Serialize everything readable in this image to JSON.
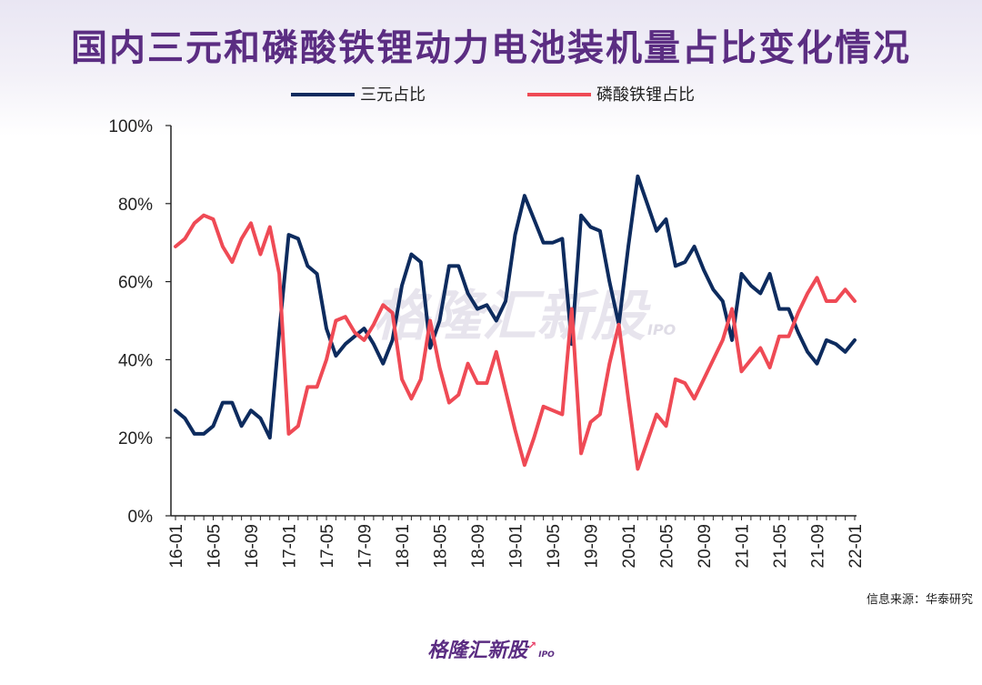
{
  "title": "国内三元和磷酸铁锂动力电池装机量占比变化情况",
  "source": "信息来源：华泰研究",
  "watermark": {
    "brand": "格隆汇新股",
    "suffix": "IPO"
  },
  "footer": {
    "brand": "格隆汇新股",
    "suffix": "IPO"
  },
  "colors": {
    "ternary": "#0d2b5e",
    "lfp": "#ef4a55",
    "title": "#5b2d82"
  },
  "chart_data": {
    "type": "line",
    "title": "国内三元和磷酸铁锂动力电池装机量占比变化情况",
    "xlabel": "",
    "ylabel": "",
    "ylim": [
      0,
      100
    ],
    "yticks": [
      0,
      20,
      40,
      60,
      80,
      100
    ],
    "ytick_labels": [
      "0%",
      "20%",
      "40%",
      "60%",
      "80%",
      "100%"
    ],
    "x_tick_labels": [
      "16-01",
      "16-05",
      "16-09",
      "17-01",
      "17-05",
      "17-09",
      "18-01",
      "18-05",
      "18-09",
      "19-01",
      "19-05",
      "19-09",
      "20-01",
      "20-05",
      "20-09",
      "21-01",
      "21-05",
      "21-09",
      "22-01"
    ],
    "x_tick_step": 4,
    "legend_position": "top",
    "series": [
      {
        "name": "三元占比",
        "color": "#0d2b5e",
        "values": [
          27,
          25,
          21,
          21,
          23,
          29,
          29,
          23,
          27,
          25,
          20,
          47,
          72,
          71,
          64,
          62,
          48,
          41,
          44,
          46,
          48,
          44,
          39,
          45,
          59,
          67,
          65,
          43,
          50,
          64,
          64,
          57,
          53,
          54,
          50,
          55,
          72,
          82,
          76,
          70,
          70,
          71,
          44,
          77,
          74,
          73,
          60,
          49,
          69,
          87,
          80,
          73,
          76,
          64,
          65,
          69,
          63,
          58,
          55,
          45,
          62,
          59,
          57,
          62,
          53,
          53,
          47,
          42,
          39,
          45,
          44,
          42,
          45
        ]
      },
      {
        "name": "磷酸铁锂占比",
        "color": "#ef4a55",
        "values": [
          69,
          71,
          75,
          77,
          76,
          69,
          65,
          71,
          75,
          67,
          74,
          62,
          21,
          23,
          33,
          33,
          40,
          50,
          51,
          47,
          45,
          49,
          54,
          52,
          35,
          30,
          35,
          50,
          38,
          29,
          31,
          39,
          34,
          34,
          42,
          32,
          22,
          13,
          20,
          28,
          27,
          26,
          53,
          16,
          24,
          26,
          39,
          49,
          30,
          12,
          19,
          26,
          23,
          35,
          34,
          30,
          35,
          40,
          45,
          53,
          37,
          40,
          43,
          38,
          46,
          46,
          52,
          57,
          61,
          55,
          55,
          58,
          55
        ]
      }
    ]
  }
}
